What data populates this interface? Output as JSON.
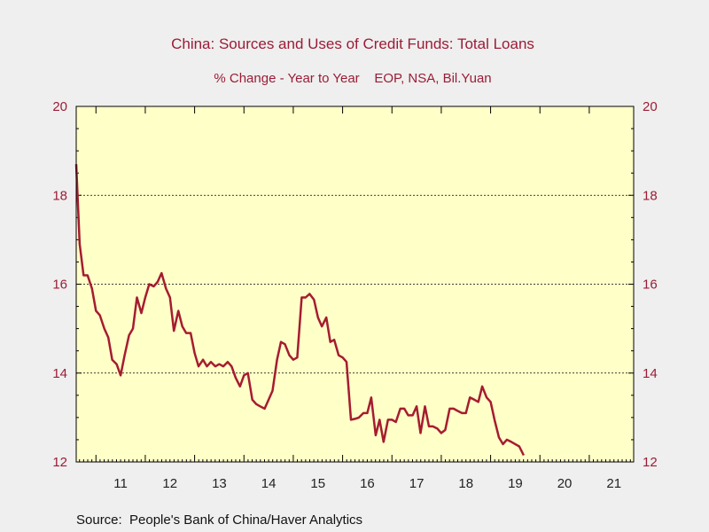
{
  "chart_data": {
    "type": "line",
    "title": "China: Sources and Uses of Credit Funds: Total Loans",
    "subtitle": "% Change - Year to Year    EOP, NSA, Bil.Yuan",
    "source": "Source:  People's Bank of China/Haver Analytics",
    "ylim": [
      12,
      20
    ],
    "y_ticks": [
      "12",
      "14",
      "16",
      "18",
      "20"
    ],
    "x_range": [
      2010.6,
      2021.9
    ],
    "x_ticks": [
      "11",
      "12",
      "13",
      "14",
      "15",
      "16",
      "17",
      "18",
      "19",
      "20",
      "21"
    ],
    "gridlines_y": [
      14,
      16,
      18
    ],
    "colors": {
      "line": "#a51c30",
      "plot_bg": "#ffffc8",
      "text": "#9b1c36"
    },
    "series": [
      {
        "x": [
          2010.6,
          2010.67,
          2010.75,
          2010.83,
          2010.92,
          2011.0,
          2011.08,
          2011.17,
          2011.25,
          2011.33,
          2011.42,
          2011.5,
          2011.58,
          2011.67,
          2011.75,
          2011.83,
          2011.92,
          2012.0,
          2012.08,
          2012.17,
          2012.25,
          2012.33,
          2012.42,
          2012.5,
          2012.58,
          2012.67,
          2012.75,
          2012.83,
          2012.92,
          2013.0,
          2013.08,
          2013.17,
          2013.25,
          2013.33,
          2013.42,
          2013.5,
          2013.58,
          2013.67,
          2013.75,
          2013.83,
          2013.92,
          2014.0,
          2014.08,
          2014.17,
          2014.25,
          2014.33,
          2014.42,
          2014.5,
          2014.58,
          2014.67,
          2014.75,
          2014.83,
          2014.92,
          2015.0,
          2015.08,
          2015.17,
          2015.25,
          2015.33,
          2015.42,
          2015.5,
          2015.58,
          2015.67,
          2015.75,
          2015.83,
          2015.92,
          2016.0,
          2016.08,
          2016.17,
          2016.25,
          2016.33,
          2016.42,
          2016.5,
          2016.58,
          2016.67,
          2016.75,
          2016.83,
          2016.92,
          2017.0,
          2017.08,
          2017.17,
          2017.25,
          2017.33,
          2017.42,
          2017.5,
          2017.58,
          2017.67,
          2017.75,
          2017.83,
          2017.92,
          2018.0,
          2018.08,
          2018.17,
          2018.25,
          2018.33,
          2018.42,
          2018.5,
          2018.58,
          2018.67,
          2018.75,
          2018.83,
          2018.92,
          2019.0,
          2019.08,
          2019.17,
          2019.25,
          2019.33,
          2019.42,
          2019.5,
          2019.58,
          2019.67
        ],
        "values": [
          18.7,
          16.9,
          16.2,
          16.2,
          15.9,
          15.4,
          15.3,
          15.0,
          14.8,
          14.3,
          14.2,
          13.95,
          14.4,
          14.85,
          15.0,
          15.7,
          15.35,
          15.7,
          16.0,
          15.95,
          16.05,
          16.25,
          15.9,
          15.7,
          14.95,
          15.4,
          15.05,
          14.9,
          14.9,
          14.45,
          14.15,
          14.3,
          14.15,
          14.25,
          14.15,
          14.2,
          14.15,
          14.25,
          14.15,
          13.9,
          13.7,
          13.95,
          14.0,
          13.4,
          13.3,
          13.25,
          13.2,
          13.4,
          13.6,
          14.3,
          14.7,
          14.65,
          14.4,
          14.3,
          14.35,
          15.7,
          15.7,
          15.78,
          15.65,
          15.25,
          15.05,
          15.25,
          14.7,
          14.75,
          14.4,
          14.35,
          14.25,
          12.95,
          12.97,
          13.0,
          13.1,
          13.1,
          13.45,
          12.6,
          12.95,
          12.45,
          12.95,
          12.95,
          12.9,
          13.2,
          13.2,
          13.05,
          13.05,
          13.25,
          12.65,
          13.25,
          12.8,
          12.8,
          12.75,
          12.65,
          12.72,
          13.2,
          13.2,
          13.15,
          13.1,
          13.1,
          13.45,
          13.4,
          13.35,
          13.7,
          13.45,
          13.35,
          12.95,
          12.55,
          12.4,
          12.5,
          12.45,
          12.4,
          12.35,
          12.15
        ]
      }
    ]
  }
}
